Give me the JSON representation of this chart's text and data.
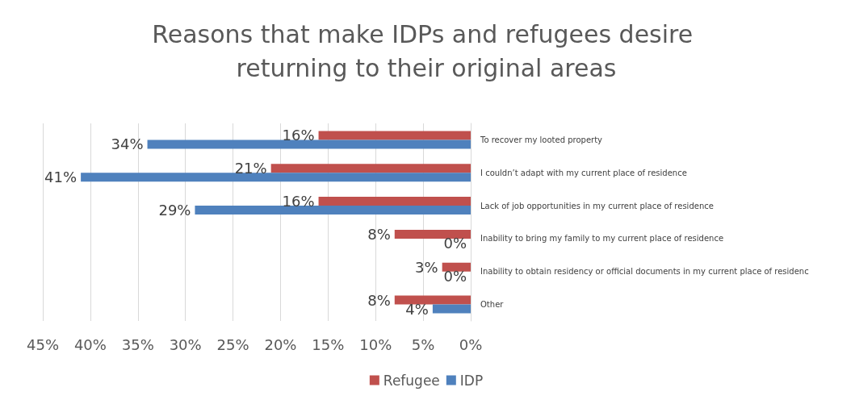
{
  "chart_data": {
    "type": "bar",
    "orientation": "horizontal",
    "title": "Reasons that make IDPs and refugees desire returning to their original areas",
    "categories": [
      "To recover my looted property",
      "I couldn’t adapt with my current place of residence",
      "Lack of job opportunities in my current place of residence",
      "Inability to bring my family to my current place of residence",
      "Inability to obtain residency or official documents in my current place of residenc",
      "Other"
    ],
    "series": [
      {
        "name": "Refugee",
        "color": "#c0504d",
        "values": [
          16,
          21,
          16,
          8,
          3,
          8
        ],
        "value_labels": [
          "16%",
          "21%",
          "16%",
          "8%",
          "3%",
          "8%"
        ]
      },
      {
        "name": "IDP",
        "color": "#4f81bd",
        "values": [
          34,
          41,
          29,
          0,
          0,
          4
        ],
        "value_labels": [
          "34%",
          "41%",
          "29%",
          "0%",
          "0%",
          "4%"
        ]
      }
    ],
    "xlim": [
      45,
      0
    ],
    "xticks": [
      {
        "value": 45,
        "label": "45%"
      },
      {
        "value": 40,
        "label": "40%"
      },
      {
        "value": 35,
        "label": "35%"
      },
      {
        "value": 30,
        "label": "30%"
      },
      {
        "value": 25,
        "label": "25%"
      },
      {
        "value": 20,
        "label": "20%"
      },
      {
        "value": 15,
        "label": "15%"
      },
      {
        "value": 10,
        "label": "10%"
      },
      {
        "value": 5,
        "label": "5%"
      },
      {
        "value": 0,
        "label": "0%"
      }
    ],
    "grid": "x",
    "legend": "bottom"
  }
}
